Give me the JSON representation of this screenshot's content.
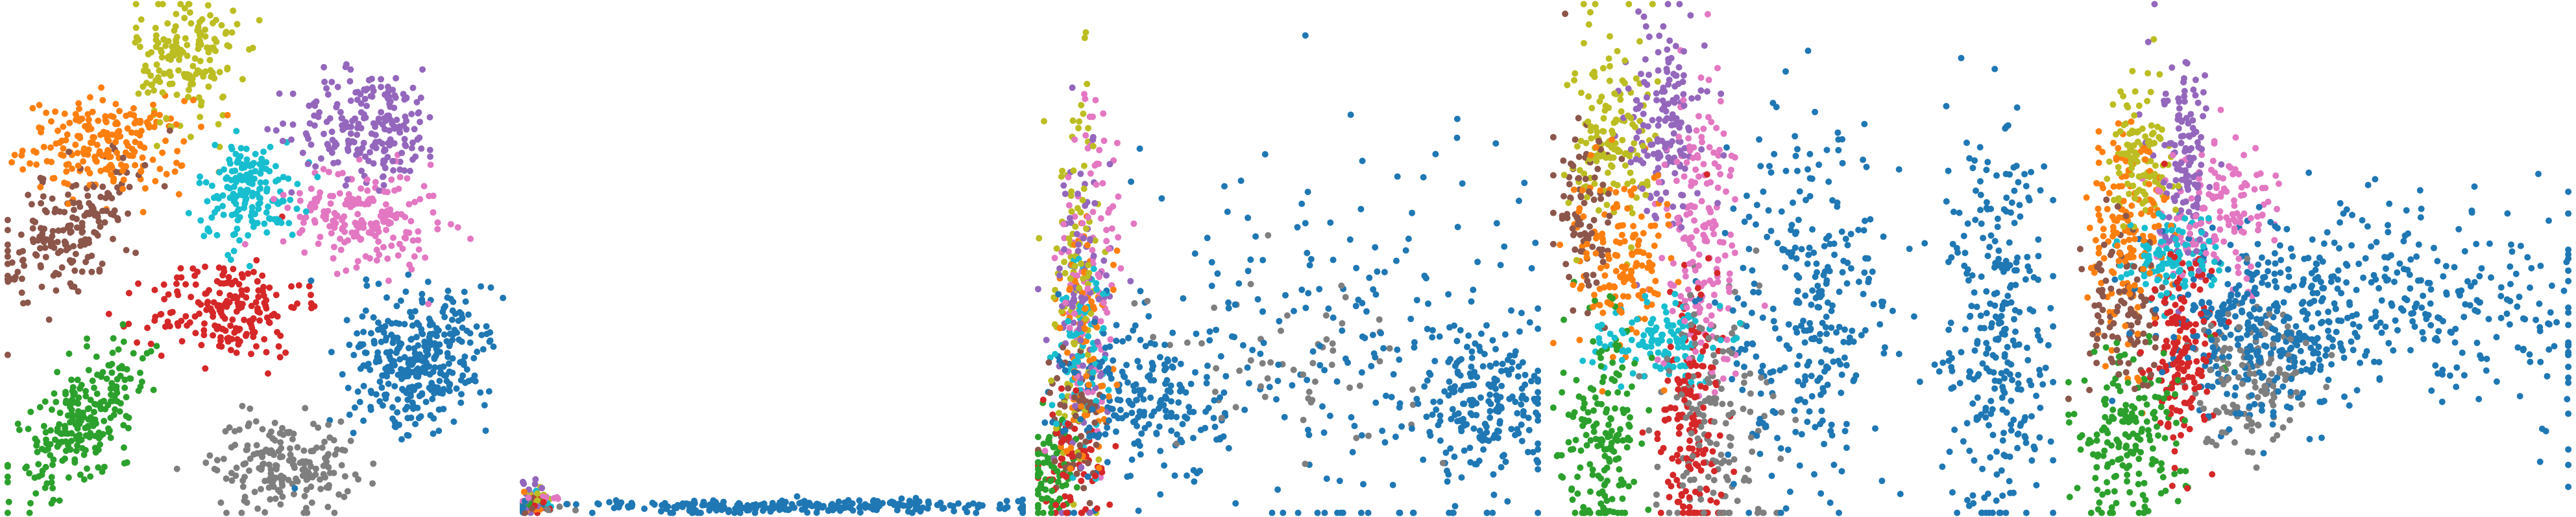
{
  "colors": {
    "c0": "#1f77b4",
    "c1": "#ff7f0e",
    "c2": "#2ca02c",
    "c3": "#d62728",
    "c4": "#9467bd",
    "c5": "#8c564b",
    "c6": "#e377c2",
    "c7": "#7f7f7f",
    "c8": "#bcbd22",
    "c9": "#17becf"
  },
  "chart_data": [
    {
      "type": "scatter",
      "title": "",
      "xlabel": "",
      "ylabel": "",
      "axes": "off",
      "grid": false,
      "legend": "none",
      "xlim": [
        0,
        100
      ],
      "ylim": [
        0,
        100
      ],
      "series": [
        {
          "color": "#1f77b4",
          "n": 340,
          "clusters": [
            {
              "cx": 82,
              "cy": 30,
              "sx": 6.5,
              "sy": 8,
              "rot": -28
            }
          ]
        },
        {
          "color": "#ff7f0e",
          "n": 210,
          "clusters": [
            {
              "cx": 20,
              "cy": 72,
              "sx": 8,
              "sy": 4.5,
              "rot": 0
            }
          ]
        },
        {
          "color": "#2ca02c",
          "n": 240,
          "clusters": [
            {
              "cx": 15,
              "cy": 18,
              "sx": 4,
              "sy": 8.5,
              "rot": -35
            }
          ]
        },
        {
          "color": "#d62728",
          "n": 200,
          "clusters": [
            {
              "cx": 44,
              "cy": 40,
              "sx": 7.5,
              "sy": 5,
              "rot": 5
            }
          ]
        },
        {
          "color": "#9467bd",
          "n": 210,
          "clusters": [
            {
              "cx": 72,
              "cy": 76,
              "sx": 7.5,
              "sy": 5.5,
              "rot": 0
            }
          ]
        },
        {
          "color": "#8c564b",
          "n": 190,
          "clusters": [
            {
              "cx": 13,
              "cy": 56,
              "sx": 8.5,
              "sy": 4.5,
              "rot": 40
            }
          ]
        },
        {
          "color": "#e377c2",
          "n": 200,
          "clusters": [
            {
              "cx": 71,
              "cy": 58,
              "sx": 7.5,
              "sy": 5,
              "rot": -10
            }
          ]
        },
        {
          "color": "#7f7f7f",
          "n": 190,
          "clusters": [
            {
              "cx": 55,
              "cy": 10,
              "sx": 7,
              "sy": 4.5,
              "rot": 0
            }
          ]
        },
        {
          "color": "#bcbd22",
          "n": 170,
          "clusters": [
            {
              "cx": 36,
              "cy": 89,
              "sx": 5,
              "sy": 6.5,
              "rot": 0
            }
          ]
        },
        {
          "color": "#17becf",
          "n": 170,
          "clusters": [
            {
              "cx": 48,
              "cy": 63,
              "sx": 5,
              "sy": 5,
              "rot": 0
            }
          ]
        }
      ]
    },
    {
      "type": "scatter",
      "title": "",
      "xlabel": "",
      "ylabel": "",
      "axes": "off",
      "grid": false,
      "legend": "none",
      "xlim": [
        0,
        100
      ],
      "ylim": [
        0,
        100
      ],
      "series": [
        {
          "color": "#1f77b4",
          "n": 260,
          "clusters": [
            {
              "cx": 55,
              "cy": 1.5,
              "sx": 25,
              "sy": 0.7,
              "rot": 0
            }
          ]
        },
        {
          "color": "#ff7f0e",
          "n": 12,
          "clusters": [
            {
              "cx": 3,
              "cy": 2.5,
              "sx": 1.5,
              "sy": 1,
              "rot": 0
            }
          ]
        },
        {
          "color": "#2ca02c",
          "n": 10,
          "clusters": [
            {
              "cx": 2,
              "cy": 1.5,
              "sx": 1,
              "sy": 0.8,
              "rot": 0
            }
          ]
        },
        {
          "color": "#d62728",
          "n": 10,
          "clusters": [
            {
              "cx": 4,
              "cy": 1.5,
              "sx": 1.5,
              "sy": 0.8,
              "rot": 0
            }
          ]
        },
        {
          "color": "#9467bd",
          "n": 14,
          "clusters": [
            {
              "cx": 3,
              "cy": 4,
              "sx": 1.5,
              "sy": 1.5,
              "rot": 0
            }
          ]
        },
        {
          "color": "#8c564b",
          "n": 8,
          "clusters": [
            {
              "cx": 2.5,
              "cy": 2,
              "sx": 1,
              "sy": 1,
              "rot": 0
            }
          ]
        },
        {
          "color": "#e377c2",
          "n": 10,
          "clusters": [
            {
              "cx": 5,
              "cy": 3,
              "sx": 2,
              "sy": 1,
              "rot": 0
            }
          ]
        },
        {
          "color": "#7f7f7f",
          "n": 8,
          "clusters": [
            {
              "cx": 6,
              "cy": 1.5,
              "sx": 2,
              "sy": 0.8,
              "rot": 0
            }
          ]
        },
        {
          "color": "#bcbd22",
          "n": 12,
          "clusters": [
            {
              "cx": 3,
              "cy": 3.5,
              "sx": 1.2,
              "sy": 1.2,
              "rot": 0
            }
          ]
        },
        {
          "color": "#17becf",
          "n": 10,
          "clusters": [
            {
              "cx": 4,
              "cy": 2.5,
              "sx": 1.5,
              "sy": 1,
              "rot": 0
            }
          ]
        }
      ]
    },
    {
      "type": "scatter",
      "title": "",
      "xlabel": "",
      "ylabel": "",
      "axes": "off",
      "grid": false,
      "legend": "none",
      "xlim": [
        0,
        100
      ],
      "ylim": [
        0,
        100
      ],
      "series": [
        {
          "color": "#1f77b4",
          "n": 620,
          "clusters": [
            {
              "cx": 88,
              "cy": 22,
              "sx": 7,
              "sy": 7,
              "rot": 0
            },
            {
              "cx": 60,
              "cy": 35,
              "sx": 22,
              "sy": 22,
              "rot": 0
            },
            {
              "cx": 22,
              "cy": 22,
              "sx": 8,
              "sy": 8,
              "rot": 0
            }
          ]
        },
        {
          "color": "#ff7f0e",
          "n": 80,
          "clusters": [
            {
              "cx": 10,
              "cy": 32,
              "sx": 3,
              "sy": 12,
              "rot": 0
            }
          ]
        },
        {
          "color": "#2ca02c",
          "n": 70,
          "clusters": [
            {
              "cx": 3,
              "cy": 8,
              "sx": 2.5,
              "sy": 5,
              "rot": 0
            }
          ]
        },
        {
          "color": "#d62728",
          "n": 70,
          "clusters": [
            {
              "cx": 7,
              "cy": 10,
              "sx": 3,
              "sy": 6,
              "rot": 0
            }
          ]
        },
        {
          "color": "#9467bd",
          "n": 100,
          "clusters": [
            {
              "cx": 9,
              "cy": 40,
              "sx": 3,
              "sy": 16,
              "rot": 0
            }
          ]
        },
        {
          "color": "#8c564b",
          "n": 60,
          "clusters": [
            {
              "cx": 8,
              "cy": 18,
              "sx": 3,
              "sy": 8,
              "rot": 0
            }
          ]
        },
        {
          "color": "#e377c2",
          "n": 100,
          "clusters": [
            {
              "cx": 11,
              "cy": 48,
              "sx": 3.5,
              "sy": 18,
              "rot": 0
            }
          ]
        },
        {
          "color": "#7f7f7f",
          "n": 60,
          "clusters": [
            {
              "cx": 48,
              "cy": 30,
              "sx": 14,
              "sy": 8,
              "rot": 0
            }
          ]
        },
        {
          "color": "#bcbd22",
          "n": 100,
          "clusters": [
            {
              "cx": 8,
              "cy": 48,
              "sx": 2.5,
              "sy": 18,
              "rot": 0
            }
          ]
        },
        {
          "color": "#17becf",
          "n": 70,
          "clusters": [
            {
              "cx": 10,
              "cy": 35,
              "sx": 3,
              "sy": 10,
              "rot": 0
            }
          ]
        }
      ]
    },
    {
      "type": "scatter",
      "title": "",
      "xlabel": "",
      "ylabel": "",
      "axes": "off",
      "grid": false,
      "legend": "none",
      "xlim": [
        0,
        100
      ],
      "ylim": [
        0,
        100
      ],
      "series": [
        {
          "color": "#1f77b4",
          "n": 600,
          "clusters": [
            {
              "cx": 88,
              "cy": 38,
              "sx": 6,
              "sy": 22,
              "rot": 0
            },
            {
              "cx": 50,
              "cy": 40,
              "sx": 8,
              "sy": 18,
              "rot": 0
            }
          ]
        },
        {
          "color": "#ff7f0e",
          "n": 150,
          "clusters": [
            {
              "cx": 14,
              "cy": 50,
              "sx": 5,
              "sy": 9,
              "rot": 0
            }
          ]
        },
        {
          "color": "#2ca02c",
          "n": 170,
          "clusters": [
            {
              "cx": 10,
              "cy": 15,
              "sx": 4,
              "sy": 10,
              "rot": 0
            }
          ]
        },
        {
          "color": "#d62728",
          "n": 170,
          "clusters": [
            {
              "cx": 28,
              "cy": 18,
              "sx": 3,
              "sy": 14,
              "rot": 0
            }
          ]
        },
        {
          "color": "#9467bd",
          "n": 160,
          "clusters": [
            {
              "cx": 23,
              "cy": 78,
              "sx": 4,
              "sy": 10,
              "rot": 0
            }
          ]
        },
        {
          "color": "#8c564b",
          "n": 90,
          "clusters": [
            {
              "cx": 7,
              "cy": 60,
              "sx": 3,
              "sy": 10,
              "rot": 0
            }
          ]
        },
        {
          "color": "#e377c2",
          "n": 170,
          "clusters": [
            {
              "cx": 30,
              "cy": 55,
              "sx": 4,
              "sy": 14,
              "rot": 0
            }
          ]
        },
        {
          "color": "#7f7f7f",
          "n": 150,
          "clusters": [
            {
              "cx": 33,
              "cy": 20,
              "sx": 6,
              "sy": 14,
              "rot": 0
            }
          ]
        },
        {
          "color": "#bcbd22",
          "n": 150,
          "clusters": [
            {
              "cx": 12,
              "cy": 75,
              "sx": 4,
              "sy": 10,
              "rot": 0
            }
          ]
        },
        {
          "color": "#17becf",
          "n": 120,
          "clusters": [
            {
              "cx": 22,
              "cy": 33,
              "sx": 6,
              "sy": 4,
              "rot": 0
            }
          ]
        }
      ]
    },
    {
      "type": "scatter",
      "title": "",
      "xlabel": "",
      "ylabel": "",
      "axes": "off",
      "grid": false,
      "legend": "none",
      "xlim": [
        0,
        100
      ],
      "ylim": [
        0,
        100
      ],
      "series": [
        {
          "color": "#1f77b4",
          "n": 620,
          "clusters": [
            {
              "cx": 72,
              "cy": 42,
              "sx": 22,
              "sy": 10,
              "rot": -8
            },
            {
              "cx": 40,
              "cy": 35,
              "sx": 10,
              "sy": 8,
              "rot": 0
            }
          ]
        },
        {
          "color": "#ff7f0e",
          "n": 160,
          "clusters": [
            {
              "cx": 12,
              "cy": 55,
              "sx": 4,
              "sy": 12,
              "rot": 0
            }
          ]
        },
        {
          "color": "#2ca02c",
          "n": 180,
          "clusters": [
            {
              "cx": 12,
              "cy": 15,
              "sx": 6,
              "sy": 8,
              "rot": 0
            }
          ]
        },
        {
          "color": "#d62728",
          "n": 160,
          "clusters": [
            {
              "cx": 23,
              "cy": 30,
              "sx": 3,
              "sy": 10,
              "rot": 0
            }
          ]
        },
        {
          "color": "#9467bd",
          "n": 130,
          "clusters": [
            {
              "cx": 24,
              "cy": 68,
              "sx": 3,
              "sy": 10,
              "rot": 0
            }
          ]
        },
        {
          "color": "#8c564b",
          "n": 110,
          "clusters": [
            {
              "cx": 12,
              "cy": 38,
              "sx": 4,
              "sy": 8,
              "rot": 0
            }
          ]
        },
        {
          "color": "#e377c2",
          "n": 140,
          "clusters": [
            {
              "cx": 30,
              "cy": 60,
              "sx": 6,
              "sy": 7,
              "rot": 0
            }
          ]
        },
        {
          "color": "#7f7f7f",
          "n": 140,
          "clusters": [
            {
              "cx": 36,
              "cy": 28,
              "sx": 6,
              "sy": 7,
              "rot": 0
            }
          ]
        },
        {
          "color": "#bcbd22",
          "n": 110,
          "clusters": [
            {
              "cx": 15,
              "cy": 70,
              "sx": 3,
              "sy": 7,
              "rot": 0
            }
          ]
        },
        {
          "color": "#17becf",
          "n": 120,
          "clusters": [
            {
              "cx": 21,
              "cy": 50,
              "sx": 5,
              "sy": 4,
              "rot": 0
            }
          ]
        }
      ]
    }
  ]
}
